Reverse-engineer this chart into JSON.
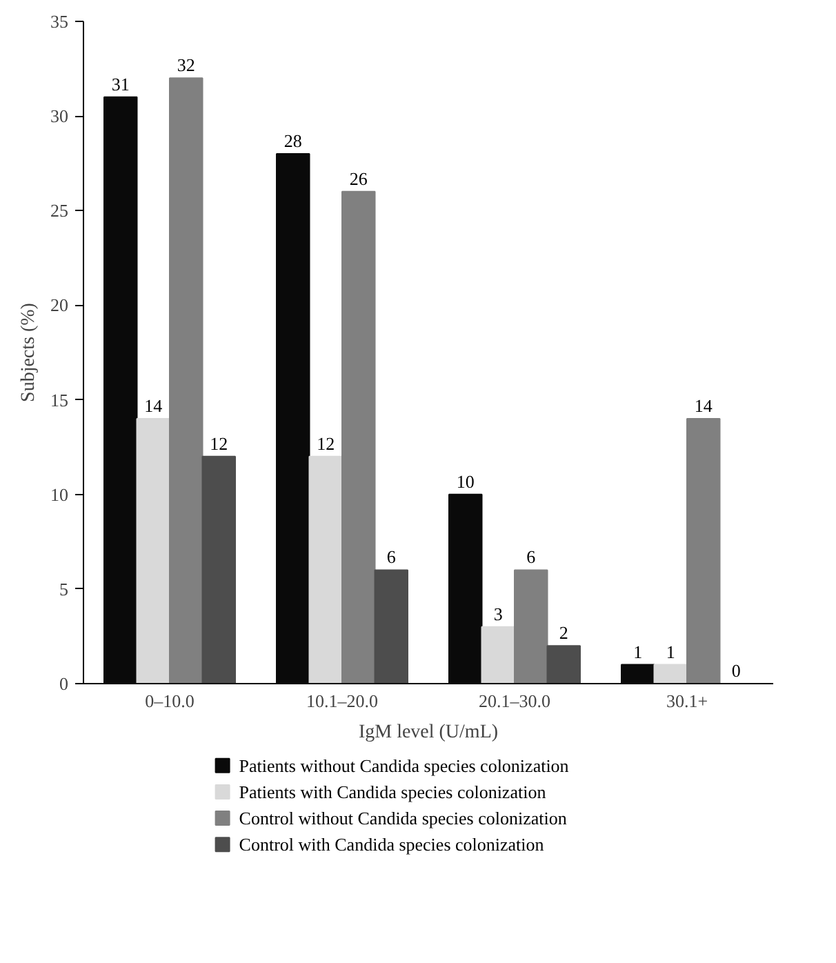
{
  "chart_data": {
    "type": "bar",
    "xlabel": "IgM level (U/mL)",
    "ylabel": "Subjects (%)",
    "categories": [
      "0–10.0",
      "10.1–20.0",
      "20.1–30.0",
      "30.1+"
    ],
    "series": [
      {
        "name": "Patients without Candida species colonization",
        "color": "#0a0a0a",
        "values": [
          31,
          28,
          10,
          1
        ]
      },
      {
        "name": "Patients with Candida species colonization",
        "color": "#d9d9d9",
        "values": [
          14,
          12,
          3,
          1
        ]
      },
      {
        "name": "Control without Candida species colonization",
        "color": "#808080",
        "values": [
          32,
          26,
          6,
          14
        ]
      },
      {
        "name": "Control with Candida species colonization",
        "color": "#4d4d4d",
        "values": [
          12,
          6,
          2,
          0
        ]
      }
    ],
    "ylim": [
      0,
      35
    ],
    "yticks": [
      0,
      5,
      10,
      15,
      20,
      25,
      30,
      35
    ],
    "data_labels": true,
    "grid": false,
    "legend": "bottom"
  }
}
